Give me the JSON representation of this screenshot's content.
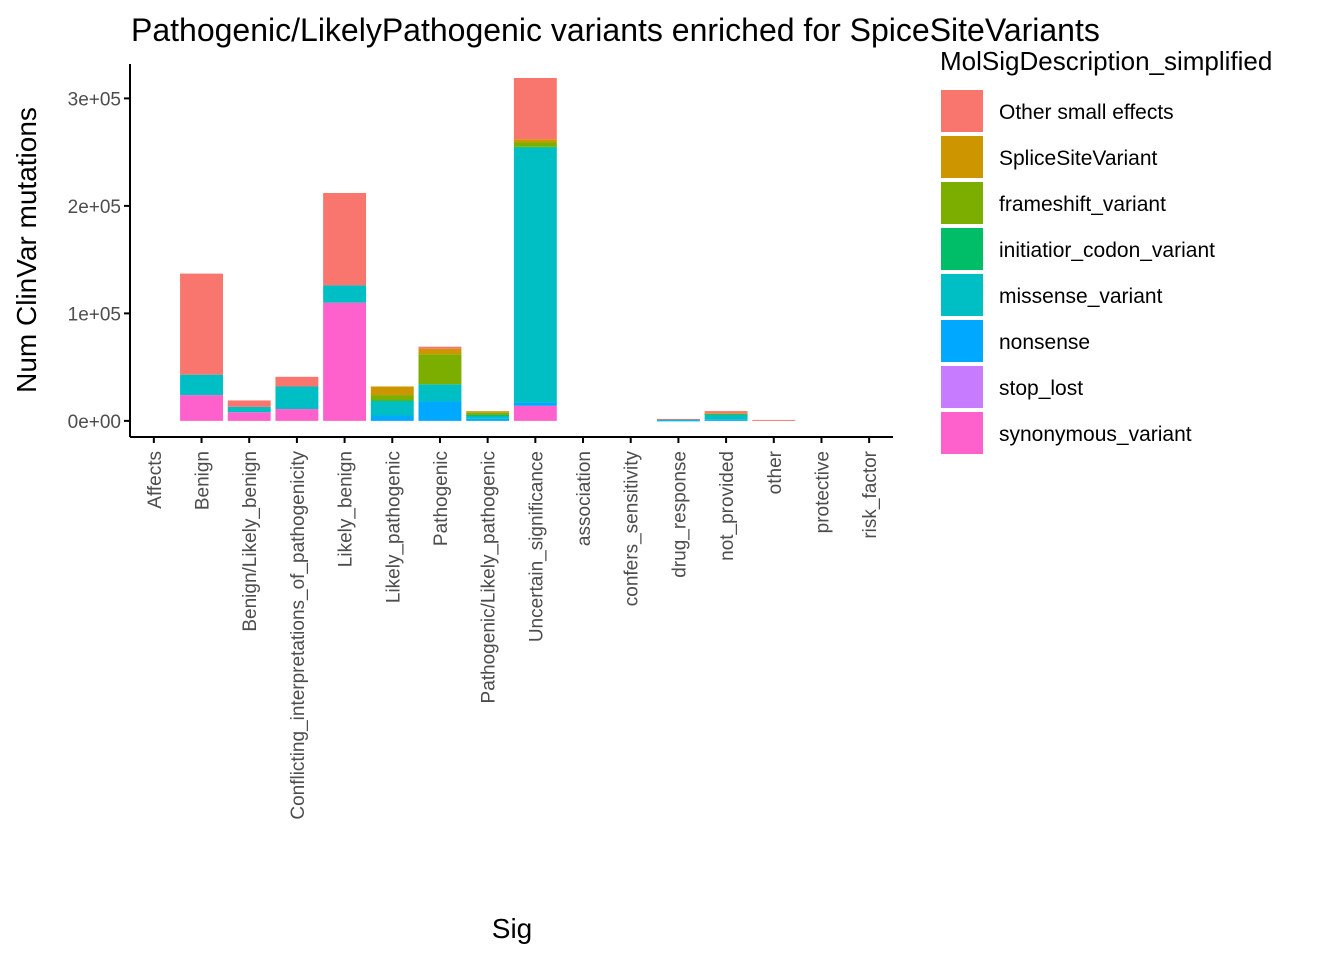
{
  "chart_data": {
    "type": "bar",
    "stacked": true,
    "title": "Pathogenic/LikelyPathogenic variants enriched for SpiceSiteVariants",
    "xlabel": "Sig",
    "ylabel": "Num ClinVar mutations",
    "ylim": [
      -15000,
      332000
    ],
    "y_ticks": [
      0,
      100000,
      200000,
      300000
    ],
    "y_tick_labels": [
      "0e+00",
      "1e+05",
      "2e+05",
      "3e+05"
    ],
    "grid": false,
    "legend_position": "right",
    "legend_title": "MolSigDescription_simplified",
    "categories": [
      "Affects",
      "Benign",
      "Benign/Likely_benign",
      "Conflicting_interpretations_of_pathogenicity",
      "Likely_benign",
      "Likely_pathogenic",
      "Pathogenic",
      "Pathogenic/Likely_pathogenic",
      "Uncertain_significance",
      "association",
      "confers_sensitivity",
      "drug_response",
      "not_provided",
      "other",
      "protective",
      "risk_factor"
    ],
    "series": [
      {
        "name": "synonymous_variant",
        "color": "#FF61CC",
        "values": [
          0,
          24000,
          8000,
          11000,
          110000,
          0,
          0,
          0,
          14000,
          0,
          0,
          0,
          0,
          0,
          0,
          0
        ]
      },
      {
        "name": "stop_lost",
        "color": "#C77CFF",
        "values": [
          0,
          0,
          0,
          0,
          0,
          0,
          0,
          0,
          0,
          0,
          0,
          0,
          0,
          0,
          0,
          0
        ]
      },
      {
        "name": "nonsense",
        "color": "#00A9FF",
        "values": [
          0,
          0,
          0,
          0,
          0,
          5000,
          18000,
          2000,
          3000,
          0,
          0,
          300,
          1000,
          0,
          0,
          0
        ]
      },
      {
        "name": "missense_variant",
        "color": "#00BFC4",
        "values": [
          0,
          19000,
          5000,
          21000,
          16000,
          13000,
          16000,
          3000,
          237000,
          0,
          0,
          1200,
          5000,
          0,
          0,
          0
        ]
      },
      {
        "name": "initiatior_codon_variant",
        "color": "#00BE67",
        "values": [
          0,
          0,
          0,
          0,
          0,
          1000,
          0,
          500,
          1000,
          0,
          0,
          0,
          300,
          0,
          0,
          0
        ]
      },
      {
        "name": "frameshift_variant",
        "color": "#7CAE00",
        "values": [
          0,
          0,
          0,
          0,
          0,
          5000,
          28000,
          2000,
          4000,
          0,
          0,
          0,
          500,
          0,
          0,
          0
        ]
      },
      {
        "name": "SpliceSiteVariant",
        "color": "#CD9600",
        "values": [
          0,
          0,
          0,
          0,
          0,
          8000,
          5000,
          1500,
          3000,
          0,
          0,
          0,
          300,
          0,
          0,
          0
        ]
      },
      {
        "name": "Other small effects",
        "color": "#F8766D",
        "values": [
          0,
          94000,
          6000,
          9000,
          86000,
          0,
          2000,
          0,
          57000,
          0,
          0,
          300,
          2000,
          900,
          0,
          0
        ]
      }
    ],
    "legend_order": [
      "Other small effects",
      "SpliceSiteVariant",
      "frameshift_variant",
      "initiatior_codon_variant",
      "missense_variant",
      "nonsense",
      "stop_lost",
      "synonymous_variant"
    ]
  }
}
